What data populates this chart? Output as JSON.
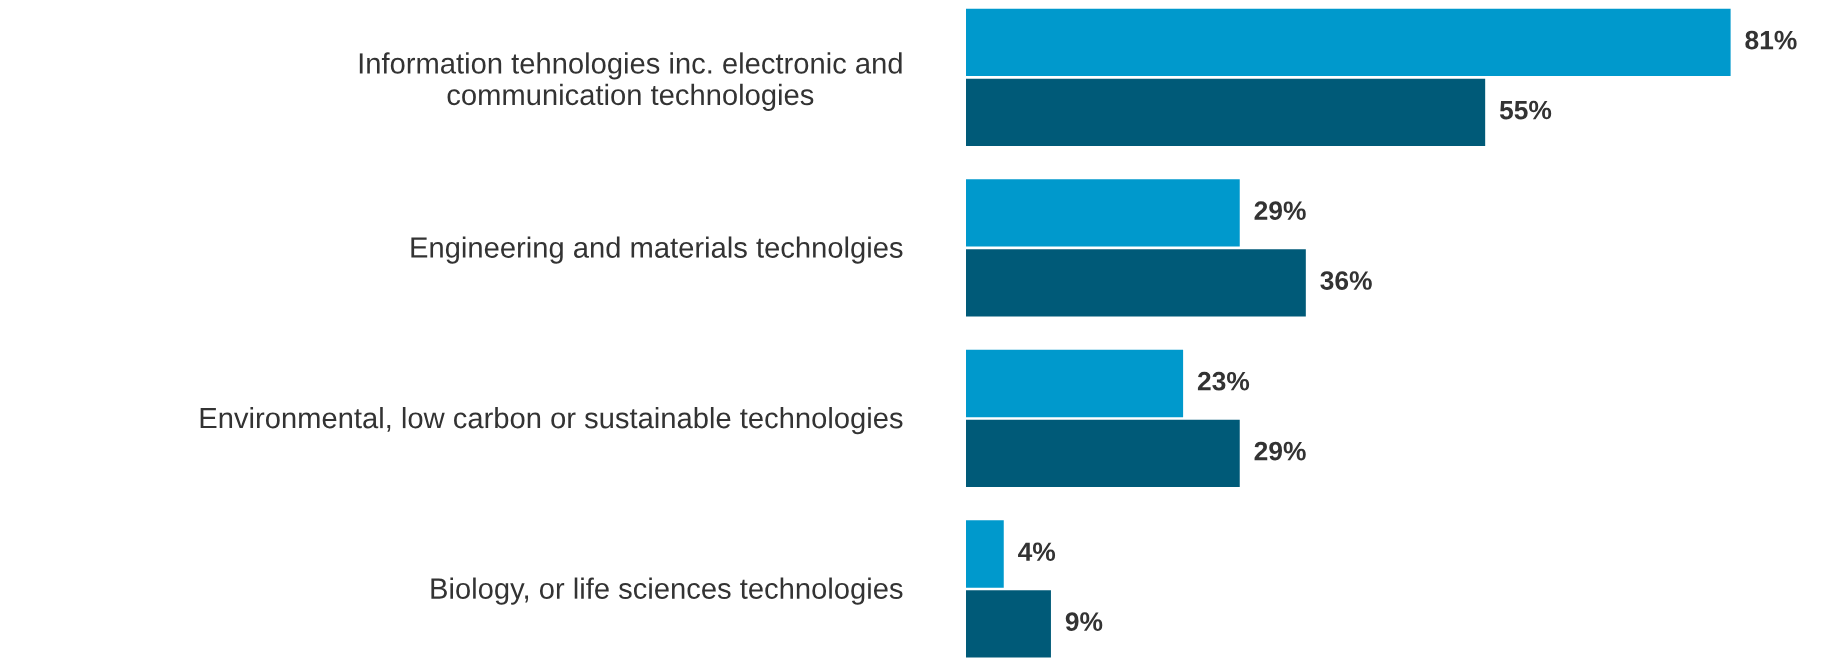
{
  "chart_data": {
    "type": "bar",
    "orientation": "horizontal",
    "categories": [
      "Information tehnologies inc. electronic and\ncommunication technologies",
      "Engineering and materials technolgies",
      "Environmental, low carbon or sustainable technologies",
      "Biology, or life sciences technologies"
    ],
    "series": [
      {
        "color": "#0099cc",
        "values": [
          81,
          29,
          23,
          4
        ],
        "value_labels": [
          "81%",
          "29%",
          "23%",
          "4%"
        ]
      },
      {
        "color": "#005a78",
        "values": [
          55,
          36,
          29,
          9
        ],
        "value_labels": [
          "55%",
          "36%",
          "29%",
          "9%"
        ]
      }
    ],
    "tick_labels": "y",
    "grid": false,
    "legend": false
  }
}
